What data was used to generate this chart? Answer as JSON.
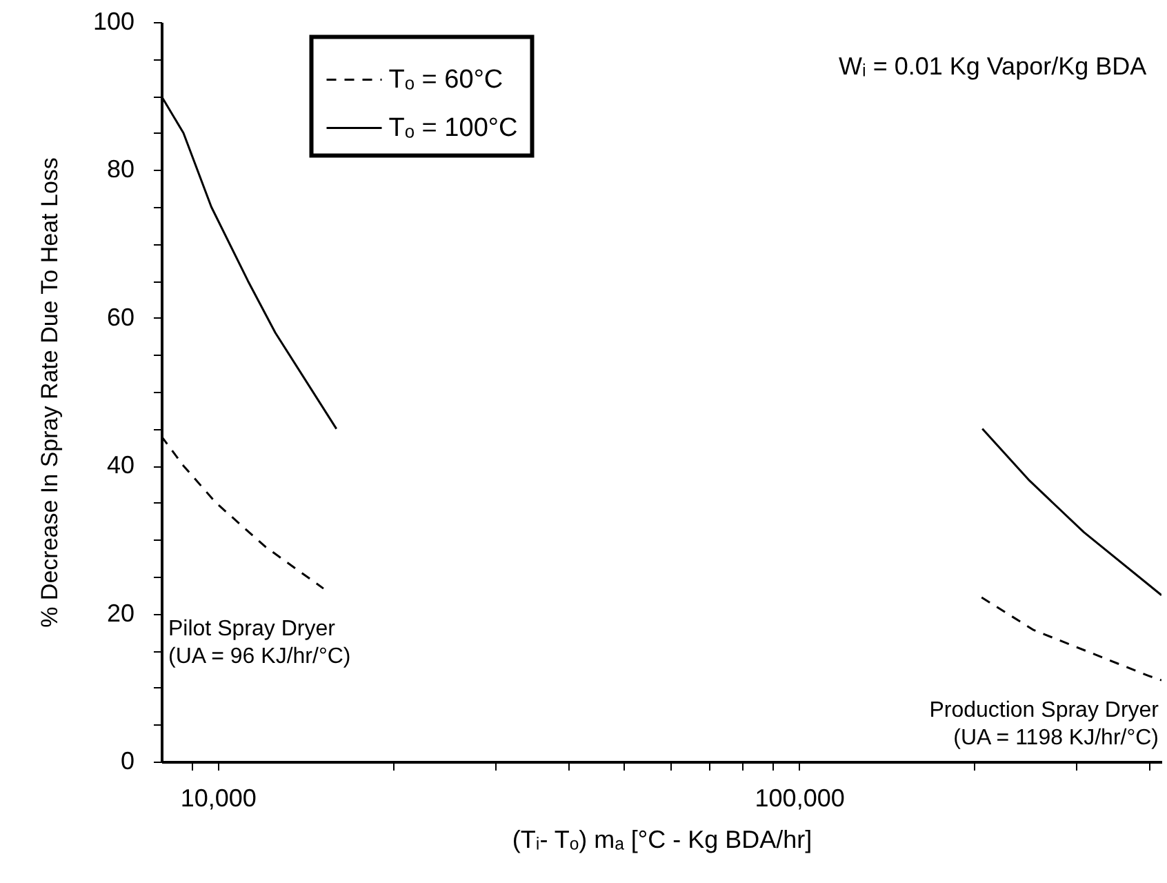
{
  "chart_data": {
    "type": "line",
    "xlabel": "(Tᵢ- Tₒ) mₐ  [°C - Kg BDA/hr]",
    "ylabel": "% Decrease In Spray Rate Due To Heat Loss",
    "log": "x",
    "xlim": [
      8000,
      420000
    ],
    "ylim": [
      0,
      100
    ],
    "xticks": [
      {
        "value": 9000,
        "label": null
      },
      {
        "value": 10000,
        "label": "10,000"
      },
      {
        "value": 20000,
        "label": null
      },
      {
        "value": 30000,
        "label": null
      },
      {
        "value": 40000,
        "label": null
      },
      {
        "value": 50000,
        "label": null
      },
      {
        "value": 60000,
        "label": null
      },
      {
        "value": 70000,
        "label": null
      },
      {
        "value": 80000,
        "label": null
      },
      {
        "value": 90000,
        "label": null
      },
      {
        "value": 100000,
        "label": "100,000"
      },
      {
        "value": 200000,
        "label": null
      },
      {
        "value": 300000,
        "label": null
      },
      {
        "value": 400000,
        "label": null
      }
    ],
    "yticks": [
      0,
      {
        "value": 5,
        "label": null
      },
      {
        "value": 10,
        "label": null
      },
      {
        "value": 15,
        "label": null
      },
      20,
      {
        "value": 25,
        "label": null
      },
      {
        "value": 30,
        "label": null
      },
      {
        "value": 35,
        "label": null
      },
      40,
      {
        "value": 45,
        "label": null
      },
      {
        "value": 50,
        "label": null
      },
      {
        "value": 55,
        "label": null
      },
      60,
      {
        "value": 65,
        "label": null
      },
      {
        "value": 70,
        "label": null
      },
      {
        "value": 75,
        "label": null
      },
      80,
      {
        "value": 85,
        "label": null
      },
      {
        "value": 90,
        "label": null
      },
      {
        "value": 95,
        "label": null
      },
      100
    ],
    "grid": false,
    "legend": "top left",
    "series": [
      {
        "name": "Tₒ = 60°C",
        "color": "#000000",
        "line_style": "dashed",
        "x": [
          8000,
          8730,
          9930,
          12100,
          15200,
          null,
          206000,
          253000,
          399000,
          420000
        ],
        "values": [
          44,
          40,
          35,
          29,
          23.4,
          null,
          22.2,
          17.8,
          11.6,
          11
        ]
      },
      {
        "name": "Tₒ = 100°C",
        "color": "#000000",
        "line_style": "solid",
        "x": [
          8000,
          8730,
          9750,
          11270,
          12560,
          16000,
          null,
          206600,
          249000,
          309000,
          420000
        ],
        "values": [
          90,
          85,
          75,
          65,
          58,
          45,
          null,
          45,
          38,
          31,
          22.5
        ]
      }
    ],
    "annotations": [
      "Wᵢ = 0.01 Kg Vapor/Kg BDA",
      "Pilot Spray Dryer\n(UA = 96 KJ/hr/°C)",
      "Production Spray Dryer\n(UA = 1198 KJ/hr/°C)"
    ]
  }
}
